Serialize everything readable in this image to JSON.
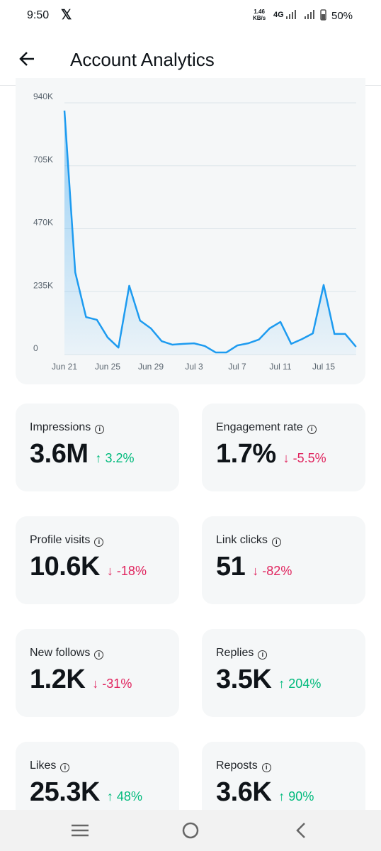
{
  "status_bar": {
    "time": "9:50",
    "speed": "1.46",
    "speed_unit": "KB/s",
    "network": "4G",
    "battery": "50%"
  },
  "header": {
    "title": "Account Analytics"
  },
  "chart_data": {
    "type": "line",
    "categories": [
      "Jun 21",
      null,
      null,
      null,
      "Jun 25",
      null,
      null,
      null,
      "Jun 29",
      null,
      null,
      null,
      "Jul 3",
      null,
      null,
      null,
      "Jul 7",
      null,
      null,
      null,
      "Jul 11",
      null,
      null,
      null,
      "Jul 15",
      null,
      null,
      null
    ],
    "series": [
      {
        "color": "#1d9bf0",
        "values": [
          911000,
          307000,
          140000,
          130000,
          64000,
          26000,
          257000,
          127000,
          98000,
          50000,
          37000,
          40000,
          42000,
          32000,
          8000,
          8000,
          34000,
          42000,
          56000,
          98000,
          122000,
          40000,
          58000,
          79000,
          260000,
          77000,
          77000,
          29000
        ]
      }
    ],
    "ylim": [
      0,
      940000
    ],
    "yticks": [
      0,
      {
        "value": 235000,
        "label": "235K"
      },
      {
        "value": 470000,
        "label": "470K"
      },
      {
        "value": 705000,
        "label": "705K"
      },
      {
        "value": 940000,
        "label": "940K"
      }
    ],
    "grid": true
  },
  "cards": [
    {
      "label": "Impressions",
      "value": "3.6M",
      "change": "3.2%"
    },
    {
      "label": "Engagement rate",
      "value": "1.7%",
      "change": "-5.5%"
    },
    {
      "label": "Profile visits",
      "value": "10.6K",
      "change": "-18%"
    },
    {
      "label": "Link clicks",
      "value": "51",
      "change": "-82%"
    },
    {
      "label": "New follows",
      "value": "1.2K",
      "change": "-31%"
    },
    {
      "label": "Replies",
      "value": "3.5K",
      "change": "204%"
    },
    {
      "label": "Likes",
      "value": "25.3K",
      "change": "48%"
    },
    {
      "label": "Reposts",
      "value": "3.6K",
      "change": "90%"
    }
  ]
}
